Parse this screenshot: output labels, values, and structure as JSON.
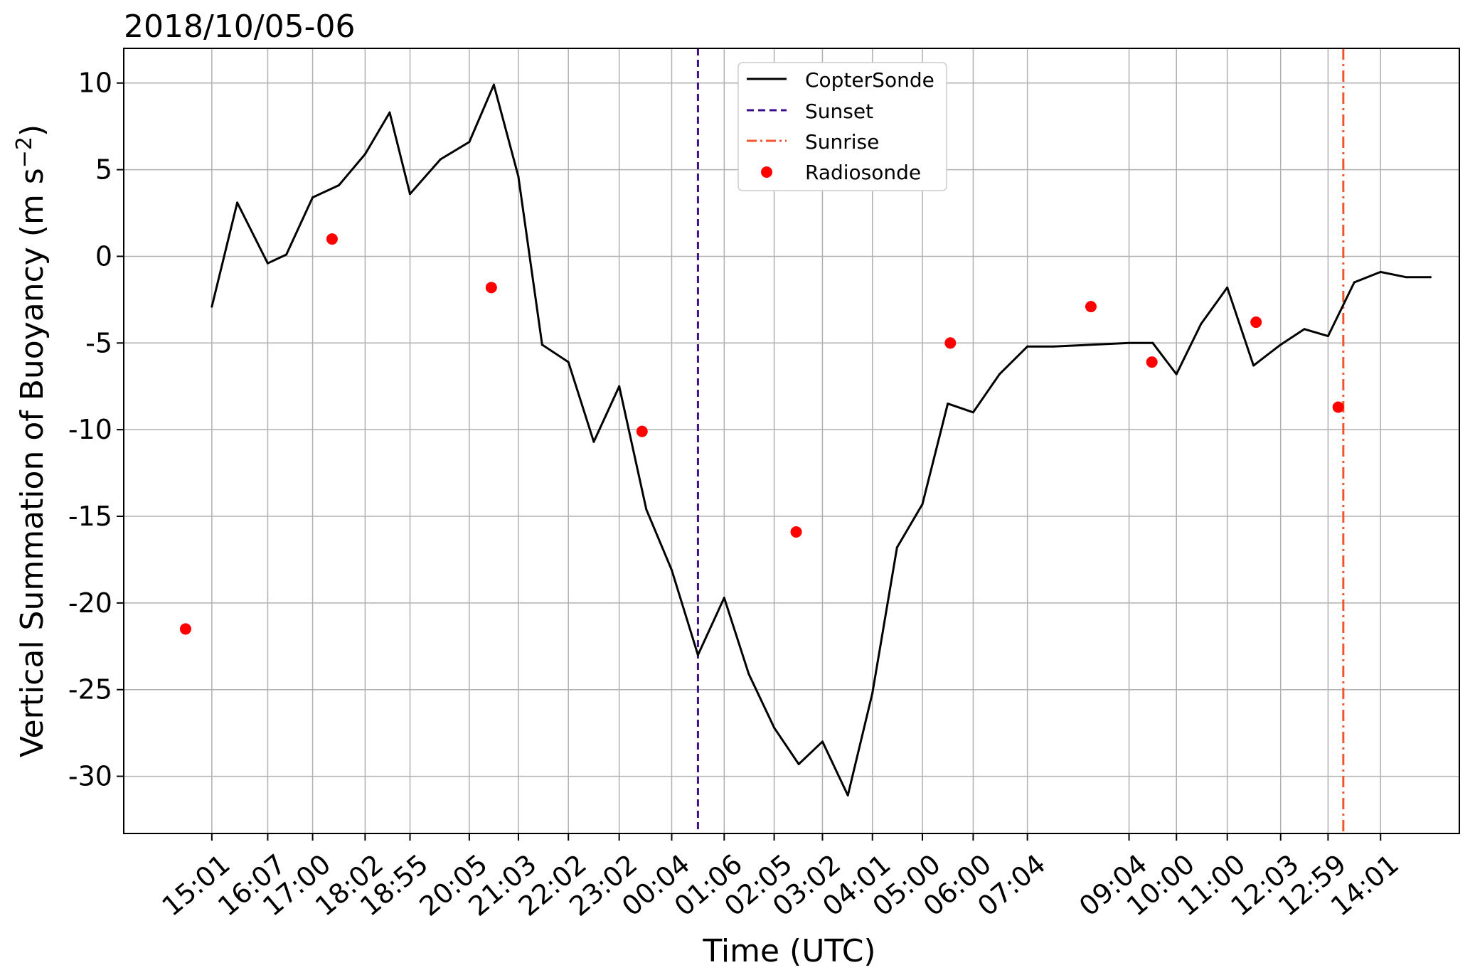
{
  "chart_data": {
    "type": "line",
    "title": "2018/10/05-06",
    "xlabel": "Time (UTC)",
    "ylabel": "Vertical Summation of Buoyancy (m s",
    "ylabel_exponent": "−2",
    "ylabel_suffix": ")",
    "ylim": [
      -33.3,
      12.0
    ],
    "yticks": [
      10,
      5,
      0,
      -5,
      -10,
      -15,
      -20,
      -25,
      -30
    ],
    "ytick_labels": [
      "10",
      "5",
      "0",
      "-5",
      "-10",
      "-15",
      "-20",
      "-25",
      "-30"
    ],
    "xlim": [
      "2018-10-05 13:17",
      "2018-10-06 15:34"
    ],
    "xticks": [
      "2018-10-05 15:01",
      "2018-10-05 16:07",
      "2018-10-05 17:00",
      "2018-10-05 18:02",
      "2018-10-05 18:55",
      "2018-10-05 20:05",
      "2018-10-05 21:03",
      "2018-10-05 22:02",
      "2018-10-05 23:02",
      "2018-10-06 00:04",
      "2018-10-06 01:06",
      "2018-10-06 02:05",
      "2018-10-06 03:02",
      "2018-10-06 04:01",
      "2018-10-06 05:00",
      "2018-10-06 06:00",
      "2018-10-06 07:04",
      "2018-10-06 09:04",
      "2018-10-06 10:00",
      "2018-10-06 11:00",
      "2018-10-06 12:03",
      "2018-10-06 12:59",
      "2018-10-06 14:01"
    ],
    "xtick_labels": [
      "15:01",
      "16:07",
      "17:00",
      "18:02",
      "18:55",
      "20:05",
      "21:03",
      "22:02",
      "23:02",
      "00:04",
      "01:06",
      "02:05",
      "03:02",
      "04:01",
      "05:00",
      "06:00",
      "07:04",
      "09:04",
      "10:00",
      "11:00",
      "12:03",
      "12:59",
      "14:01"
    ],
    "grid": true,
    "legend_position": "top-center",
    "series": [
      {
        "name": "CopterSonde",
        "kind": "line",
        "color": "#000000",
        "x": [
          "2018-10-05 15:01",
          "2018-10-05 15:31",
          "2018-10-05 16:07",
          "2018-10-05 16:29",
          "2018-10-05 17:00",
          "2018-10-05 17:31",
          "2018-10-05 18:02",
          "2018-10-05 18:31",
          "2018-10-05 18:55",
          "2018-10-05 19:31",
          "2018-10-05 20:05",
          "2018-10-05 20:34",
          "2018-10-05 21:03",
          "2018-10-05 21:31",
          "2018-10-05 22:02",
          "2018-10-05 22:32",
          "2018-10-05 23:02",
          "2018-10-05 23:34",
          "2018-10-06 00:04",
          "2018-10-06 00:35",
          "2018-10-06 01:06",
          "2018-10-06 01:35",
          "2018-10-06 02:05",
          "2018-10-06 02:34",
          "2018-10-06 03:02",
          "2018-10-06 03:32",
          "2018-10-06 04:01",
          "2018-10-06 04:30",
          "2018-10-06 05:00",
          "2018-10-06 05:30",
          "2018-10-06 06:00",
          "2018-10-06 06:31",
          "2018-10-06 07:04",
          "2018-10-06 07:35",
          "2018-10-06 09:04",
          "2018-10-06 09:32",
          "2018-10-06 10:00",
          "2018-10-06 10:29",
          "2018-10-06 11:00",
          "2018-10-06 11:31",
          "2018-10-06 12:03",
          "2018-10-06 12:31",
          "2018-10-06 12:59",
          "2018-10-06 13:30",
          "2018-10-06 14:01",
          "2018-10-06 14:31",
          "2018-10-06 15:00"
        ],
        "y": [
          -2.9,
          3.1,
          -0.4,
          0.1,
          3.4,
          4.1,
          5.9,
          8.3,
          3.6,
          5.6,
          6.6,
          9.9,
          4.6,
          -5.1,
          -6.1,
          -10.7,
          -7.5,
          -14.6,
          -18.1,
          -23.0,
          -19.7,
          -24.1,
          -27.2,
          -29.3,
          -28.0,
          -31.1,
          -25.2,
          -16.8,
          -14.3,
          -8.5,
          -9.0,
          -6.8,
          -5.2,
          -5.2,
          -5.0,
          -5.0,
          -6.8,
          -3.9,
          -1.8,
          -6.3,
          -5.1,
          -4.2,
          -4.6,
          -1.5,
          -0.9,
          -1.2,
          -1.2
        ]
      },
      {
        "name": "Sunset",
        "kind": "vline",
        "style": "dashed",
        "color": "#3b0f8c",
        "x": "2018-10-06 00:35"
      },
      {
        "name": "Sunrise",
        "kind": "vline",
        "style": "dashdot",
        "color": "#f0562e",
        "x": "2018-10-06 13:17"
      },
      {
        "name": "Radiosonde",
        "kind": "scatter",
        "color": "#ff0000",
        "x": [
          "2018-10-05 14:30",
          "2018-10-05 17:23",
          "2018-10-05 20:31",
          "2018-10-05 23:29",
          "2018-10-06 02:31",
          "2018-10-06 05:33",
          "2018-10-06 08:19",
          "2018-10-06 09:31",
          "2018-10-06 11:34",
          "2018-10-06 13:11"
        ],
        "y": [
          -21.5,
          1.0,
          -1.8,
          -10.1,
          -15.9,
          -5.0,
          -2.9,
          -6.1,
          -3.8,
          -8.7
        ]
      }
    ]
  }
}
